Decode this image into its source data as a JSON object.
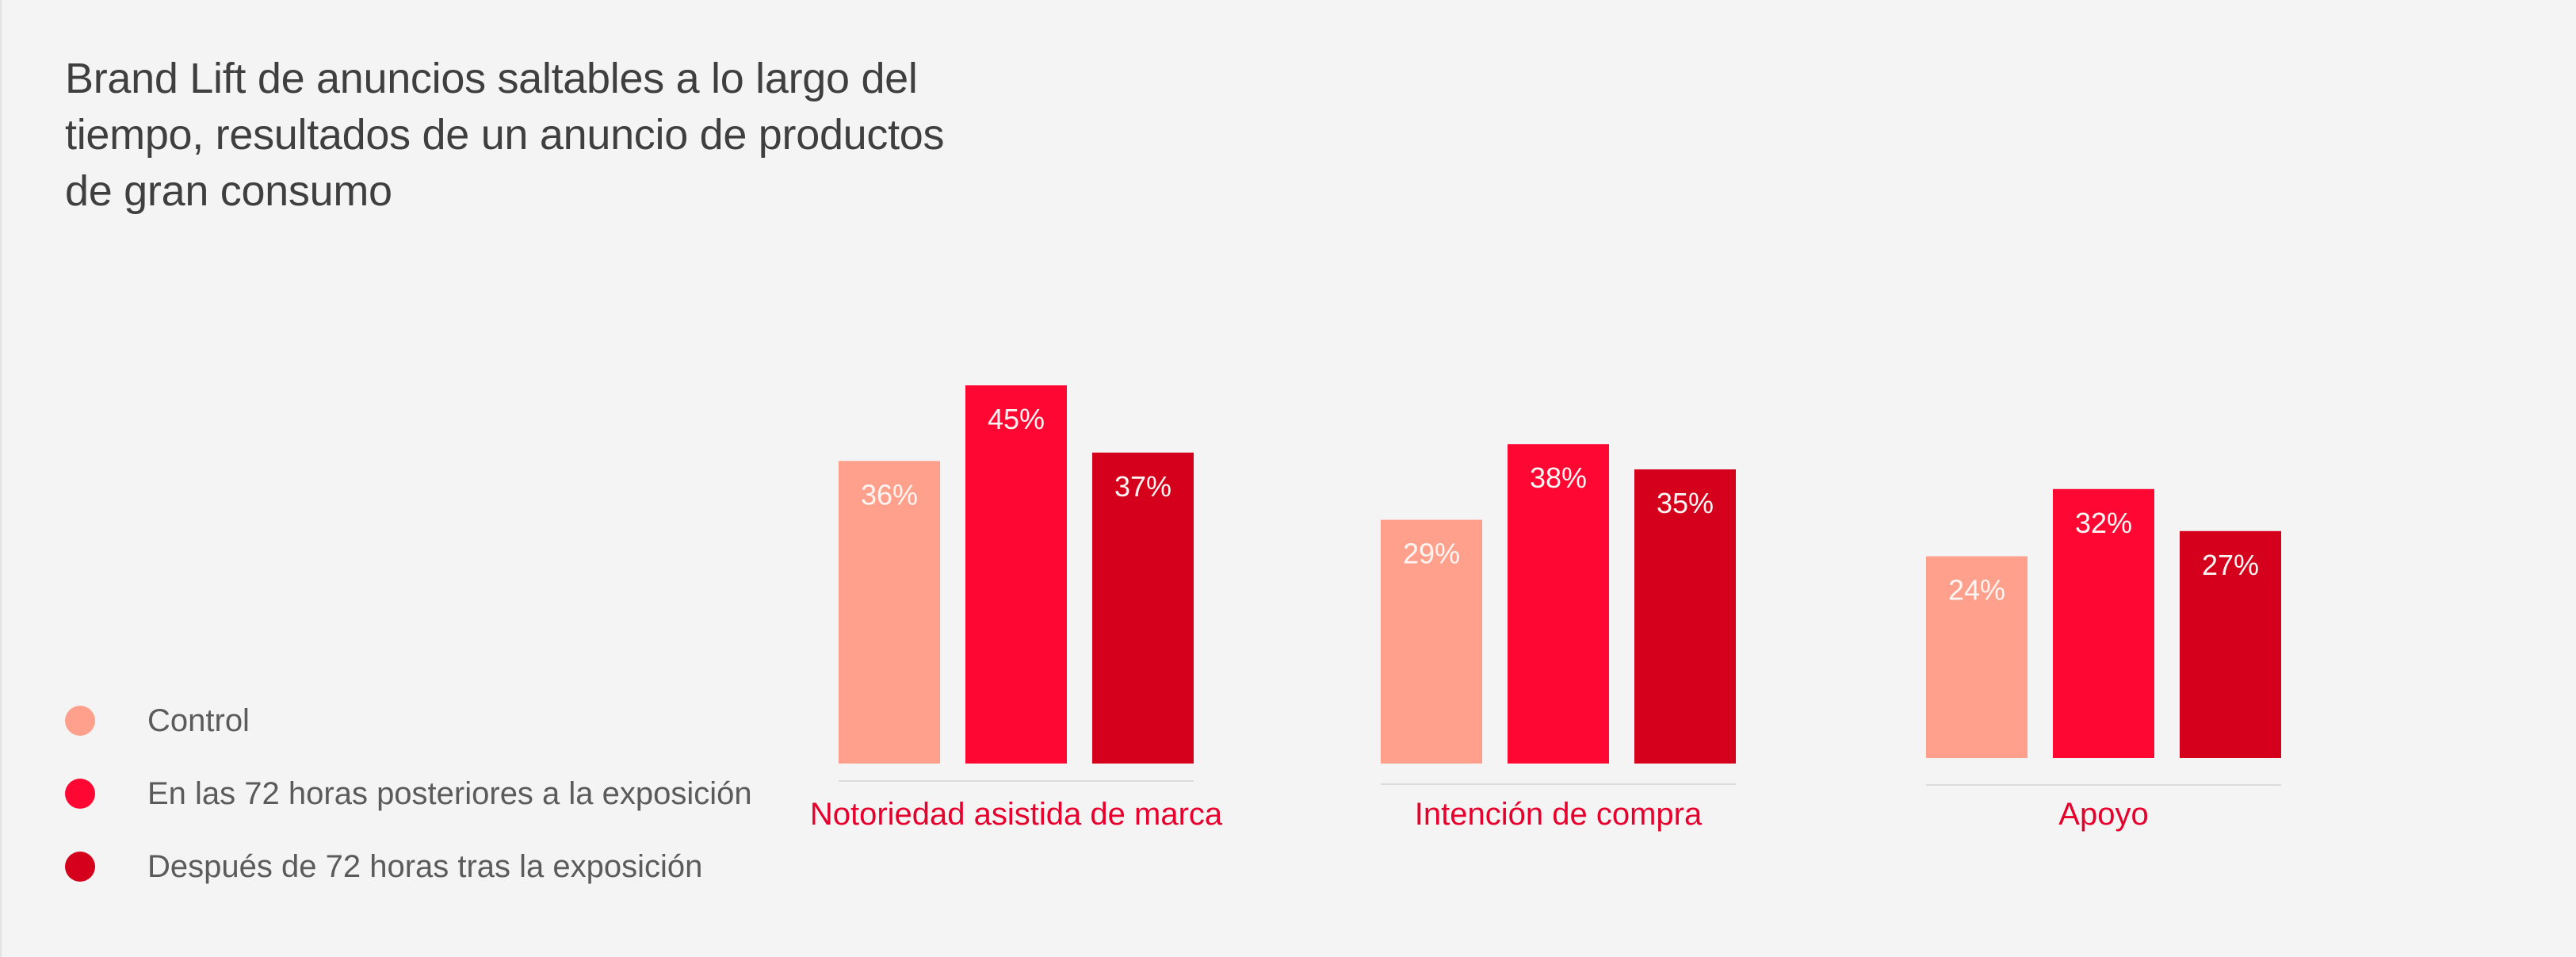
{
  "chart_data": {
    "type": "bar",
    "title": "Brand Lift de anuncios saltables a lo largo del tiempo, resultados de un anuncio de productos de gran consumo",
    "title_lines": [
      "Brand Lift de anuncios saltables a lo largo del",
      "tiempo, resultados de un anuncio de productos",
      "de gran consumo"
    ],
    "categories": [
      "Notoriedad asistida de marca",
      "Intención de compra",
      "Apoyo"
    ],
    "series": [
      {
        "name": "Control",
        "values": [
          36,
          29,
          24
        ],
        "labels": [
          "36%",
          "29%",
          "24%"
        ],
        "color": "#ffa08d"
      },
      {
        "name": "En las 72 horas posteriores a la exposición",
        "values": [
          45,
          38,
          32
        ],
        "labels": [
          "45%",
          "38%",
          "32%"
        ],
        "color": "#ff0733"
      },
      {
        "name": "Después de 72 horas tras la exposición",
        "values": [
          37,
          35,
          27
        ],
        "labels": [
          "37%",
          "35%",
          "27%"
        ],
        "color": "#d4001c"
      }
    ],
    "xlabel": "",
    "ylabel": "",
    "ylim": [
      0,
      50
    ],
    "grid": false,
    "legend_position": "bottom-left",
    "category_label_color": "#e8002c",
    "value_label_color": "#fff5f2"
  }
}
